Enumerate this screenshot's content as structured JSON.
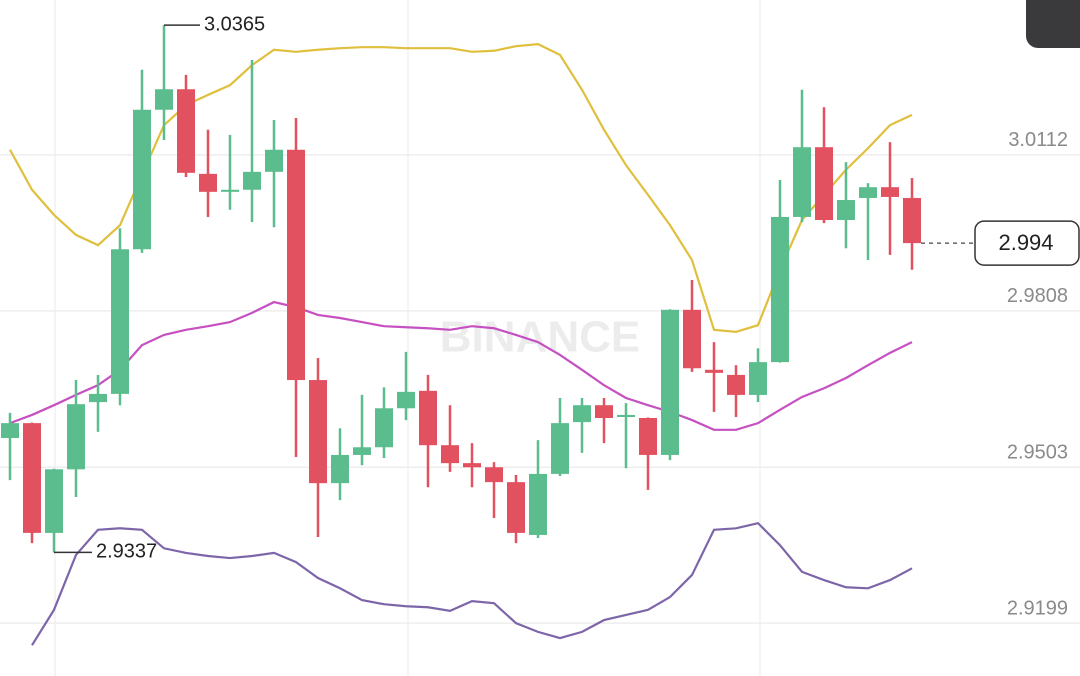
{
  "chart_data": {
    "type": "candlestick",
    "watermark": "BINANCE",
    "up_color": "#5bbd8d",
    "down_color": "#e2515f",
    "open": [
      2.956,
      2.9589,
      2.9375,
      2.9499,
      2.963,
      2.9646,
      2.9928,
      3.02,
      3.024,
      3.0075,
      3.004,
      3.0044,
      3.0079,
      3.0122,
      2.9673,
      2.9472,
      2.9527,
      2.9542,
      2.9618,
      2.9652,
      2.9546,
      2.9511,
      2.9503,
      2.9474,
      2.9371,
      2.949,
      2.9591,
      2.9624,
      2.9601,
      2.9599,
      2.9527,
      2.981,
      2.9693,
      2.9683,
      2.9644,
      2.9708,
      2.9991,
      3.0127,
      2.9985,
      3.0028,
      3.0049,
      3.0028
    ],
    "high": [
      2.9609,
      2.959,
      2.95,
      2.9673,
      2.9683,
      2.9969,
      3.0278,
      3.0365,
      3.0268,
      3.0161,
      3.0151,
      3.0297,
      3.018,
      3.0184,
      2.9716,
      2.9579,
      2.9644,
      2.9659,
      2.9728,
      2.9683,
      2.9624,
      2.955,
      2.9513,
      2.9488,
      2.9556,
      2.9638,
      2.9638,
      2.9638,
      2.9628,
      2.96,
      2.9811,
      2.9868,
      2.9747,
      2.9702,
      2.9735,
      3.0063,
      3.0239,
      3.0205,
      3.0098,
      3.0057,
      3.0137,
      3.0067
    ],
    "low": [
      2.9478,
      2.9355,
      2.9337,
      2.9445,
      2.9572,
      2.9624,
      2.9921,
      3.0141,
      3.0069,
      2.9991,
      3.0005,
      2.9981,
      2.9971,
      2.9523,
      2.9367,
      2.9439,
      2.9507,
      2.9521,
      2.9595,
      2.9464,
      2.9494,
      2.9464,
      2.9404,
      2.9355,
      2.9365,
      2.9486,
      2.9531,
      2.955,
      2.9501,
      2.9459,
      2.9517,
      2.9689,
      2.9611,
      2.9601,
      2.963,
      2.9707,
      2.9981,
      2.9979,
      2.993,
      2.9907,
      2.9917,
      2.9888
    ],
    "close": [
      2.9589,
      2.9375,
      2.9499,
      2.9626,
      2.9646,
      2.9928,
      3.02,
      3.024,
      3.0077,
      3.004,
      3.0044,
      3.0079,
      3.0122,
      2.9673,
      2.9472,
      2.9527,
      2.9542,
      2.9618,
      2.965,
      2.9546,
      2.9511,
      2.9503,
      2.9474,
      2.9375,
      2.949,
      2.9589,
      2.9624,
      2.9599,
      2.9605,
      2.9527,
      2.981,
      2.9696,
      2.9687,
      2.9644,
      2.9708,
      2.9991,
      3.0127,
      2.9985,
      3.0024,
      3.0049,
      3.003,
      2.994
    ],
    "overlays": [
      {
        "color": "#e0bf3c",
        "values": [
          3.0122,
          3.0044,
          2.9995,
          2.9956,
          2.9936,
          2.9975,
          3.0073,
          3.017,
          3.0209,
          3.0229,
          3.0248,
          3.0287,
          3.0317,
          3.0313,
          3.0317,
          3.032,
          3.0322,
          3.0322,
          3.032,
          3.032,
          3.032,
          3.0313,
          3.0315,
          3.0324,
          3.0328,
          3.0307,
          3.0239,
          3.0161,
          3.0092,
          3.0034,
          2.9975,
          2.9907,
          2.9771,
          2.9767,
          2.978,
          2.9888,
          2.9985,
          3.0034,
          3.0083,
          3.0125,
          3.017,
          3.019
        ]
      },
      {
        "color": "#c650c2",
        "values": [
          2.9589,
          2.9605,
          2.9624,
          2.9644,
          2.9663,
          2.9693,
          2.9741,
          2.9761,
          2.9771,
          2.9778,
          2.9786,
          2.9804,
          2.9825,
          2.9815,
          2.98,
          2.9794,
          2.9786,
          2.9778,
          2.9776,
          2.9774,
          2.9771,
          2.9778,
          2.9774,
          2.9761,
          2.9747,
          2.9722,
          2.9693,
          2.9663,
          2.9638,
          2.9624,
          2.9611,
          2.9595,
          2.9576,
          2.9576,
          2.9589,
          2.9615,
          2.964,
          2.9657,
          2.9677,
          2.9702,
          2.9726,
          2.9747
        ]
      },
      {
        "color": "#7c66a9",
        "values": [
          null,
          2.9156,
          2.9225,
          2.9332,
          2.9381,
          2.9384,
          2.9381,
          2.9345,
          2.9336,
          2.933,
          2.9326,
          2.933,
          2.9336,
          2.9318,
          2.9287,
          2.9267,
          2.9244,
          2.9236,
          2.9232,
          2.923,
          2.9223,
          2.9242,
          2.9238,
          2.9199,
          2.9182,
          2.917,
          2.9182,
          2.9205,
          2.9215,
          2.9225,
          2.925,
          2.9293,
          2.9381,
          2.9384,
          2.9394,
          2.9351,
          2.9299,
          2.9283,
          2.9269,
          2.9267,
          2.9283,
          2.9306
        ]
      }
    ],
    "ylim": [
      2.9096,
      3.0414
    ],
    "yticks": [
      3.0112,
      2.9808,
      2.9503,
      2.9199
    ],
    "grid": true
  }
}
